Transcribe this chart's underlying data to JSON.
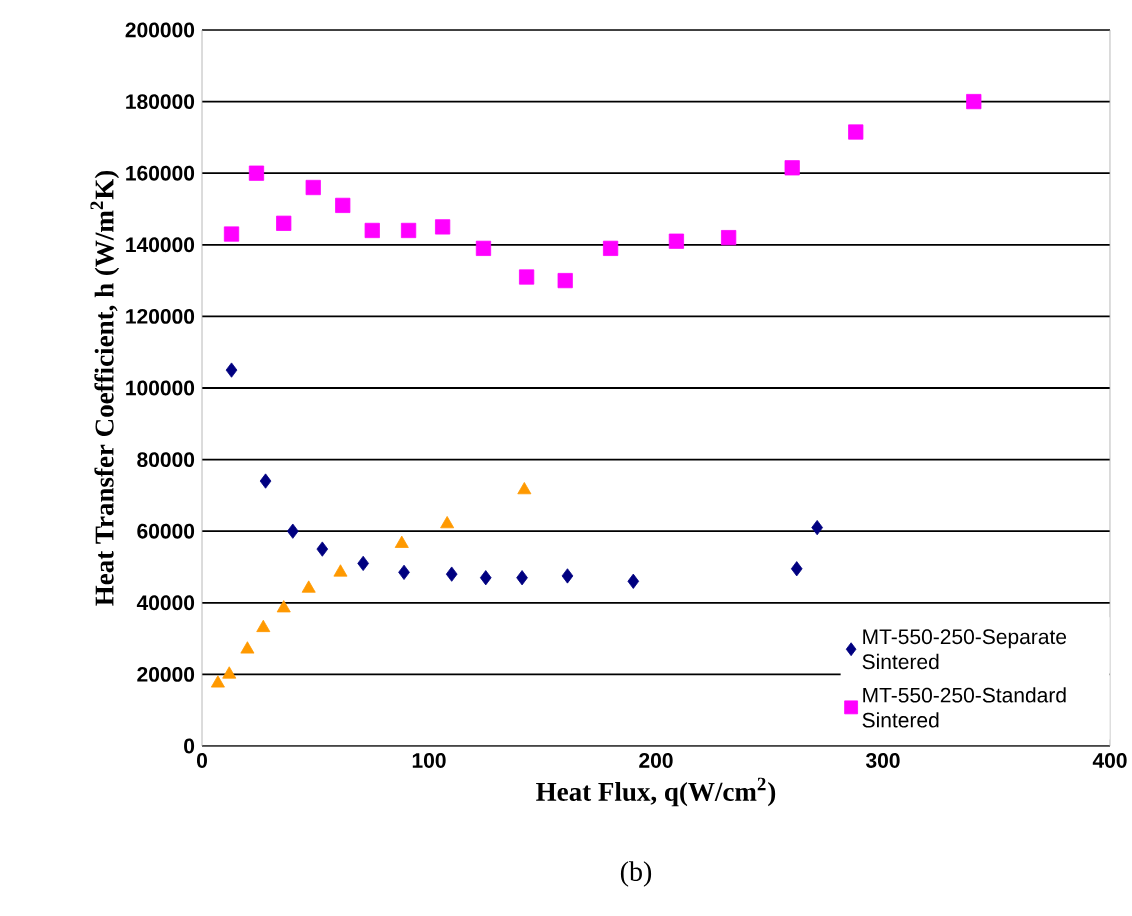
{
  "chart_data": {
    "type": "scatter",
    "xlabel": "Heat Flux, q(W/cm$^{2}$)",
    "ylabel": "Heat Transfer Coefficient, h (W/m$^{2}$K)",
    "annotations": [
      "(b)"
    ],
    "xlim": [
      0,
      400
    ],
    "xticks": [
      0,
      100,
      200,
      300,
      400
    ],
    "ylim": [
      0,
      200000
    ],
    "yticks": [
      0,
      20000,
      40000,
      60000,
      80000,
      100000,
      120000,
      140000,
      160000,
      180000,
      200000
    ],
    "grid": "y",
    "legend": "bottom right",
    "series": [
      {
        "name": "MT-550-250-Separate Sintered",
        "color": "#000080",
        "marker": "diamond",
        "x": [
          13,
          28,
          40,
          53,
          71,
          89,
          110,
          125,
          141,
          161,
          190,
          262,
          271
        ],
        "values": [
          105000,
          74000,
          60000,
          55000,
          51000,
          48500,
          48000,
          47000,
          47000,
          47500,
          46000,
          49500,
          61000
        ]
      },
      {
        "name": "MT-550-250-Standard Sintered",
        "color": "#ff00ff",
        "marker": "square",
        "x": [
          13,
          24,
          36,
          49,
          62,
          75,
          91,
          106,
          124,
          143,
          160,
          180,
          209,
          232,
          260,
          288,
          340
        ],
        "values": [
          143000,
          160000,
          146000,
          156000,
          151000,
          144000,
          144000,
          145000,
          139000,
          131000,
          130000,
          139000,
          141000,
          142000,
          161500,
          171500,
          180000
        ]
      },
      {
        "color": "#ff9900",
        "marker": "triangle",
        "x": [
          7,
          12,
          20,
          27,
          36,
          47,
          61,
          88,
          108,
          142
        ],
        "values": [
          17500,
          20000,
          27000,
          33000,
          38500,
          44000,
          48500,
          56500,
          62000,
          71500
        ]
      }
    ]
  }
}
